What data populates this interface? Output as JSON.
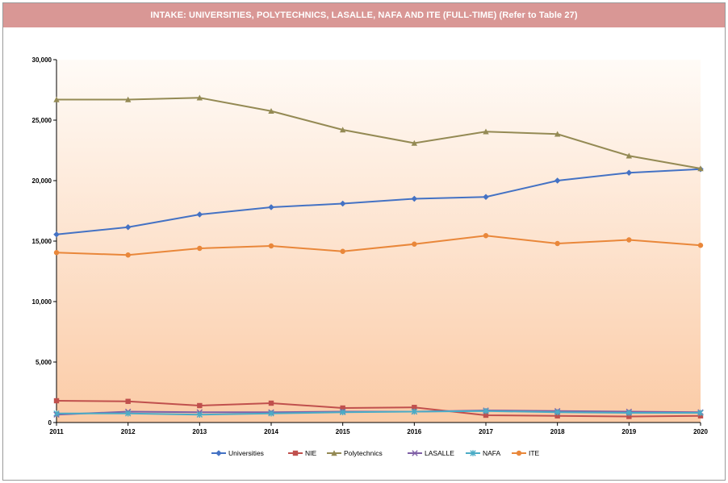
{
  "chart_data": {
    "type": "line",
    "title": "INTAKE: UNIVERSITIES, POLYTECHNICS, LASALLE, NAFA AND ITE (FULL-TIME) (Refer to Table 27)",
    "xlabel": "",
    "ylabel": "",
    "x": [
      "2011",
      "2012",
      "2013",
      "2014",
      "2015",
      "2016",
      "2017",
      "2018",
      "2019",
      "2020"
    ],
    "ylim": [
      0,
      30000
    ],
    "yticks": [
      "0",
      "5,000",
      "10,000",
      "15,000",
      "20,000",
      "25,000",
      "30,000"
    ],
    "ytick_values": [
      0,
      5000,
      10000,
      15000,
      20000,
      25000,
      30000
    ],
    "legend_position": "bottom",
    "series": [
      {
        "name": "Universities",
        "color": "#4472c4",
        "marker": "diamond",
        "values": [
          15550,
          16150,
          17200,
          17800,
          18100,
          18500,
          18650,
          20000,
          20650,
          20950
        ]
      },
      {
        "name": "NIE",
        "color": "#c0504d",
        "marker": "square",
        "values": [
          1800,
          1750,
          1400,
          1600,
          1200,
          1250,
          600,
          550,
          500,
          550
        ]
      },
      {
        "name": "Polytechnics",
        "color": "#948a54",
        "marker": "triangle",
        "values": [
          26700,
          26700,
          26850,
          25750,
          24200,
          23100,
          24050,
          23850,
          22050,
          21000
        ]
      },
      {
        "name": "LASALLE",
        "color": "#7f5fa6",
        "marker": "x",
        "values": [
          650,
          900,
          850,
          850,
          900,
          900,
          1000,
          950,
          900,
          850
        ]
      },
      {
        "name": "NAFA",
        "color": "#4bacc6",
        "marker": "star",
        "values": [
          750,
          750,
          650,
          750,
          850,
          900,
          950,
          850,
          800,
          800
        ]
      },
      {
        "name": "ITE",
        "color": "#e9873a",
        "marker": "circle",
        "values": [
          14050,
          13850,
          14400,
          14600,
          14150,
          14750,
          15450,
          14800,
          15100,
          14650
        ]
      }
    ]
  },
  "colors": {
    "header_bg": "#d99795",
    "axis": "#000000",
    "gradient_top": "#fffbf7",
    "gradient_bottom": "#fbcba6"
  }
}
